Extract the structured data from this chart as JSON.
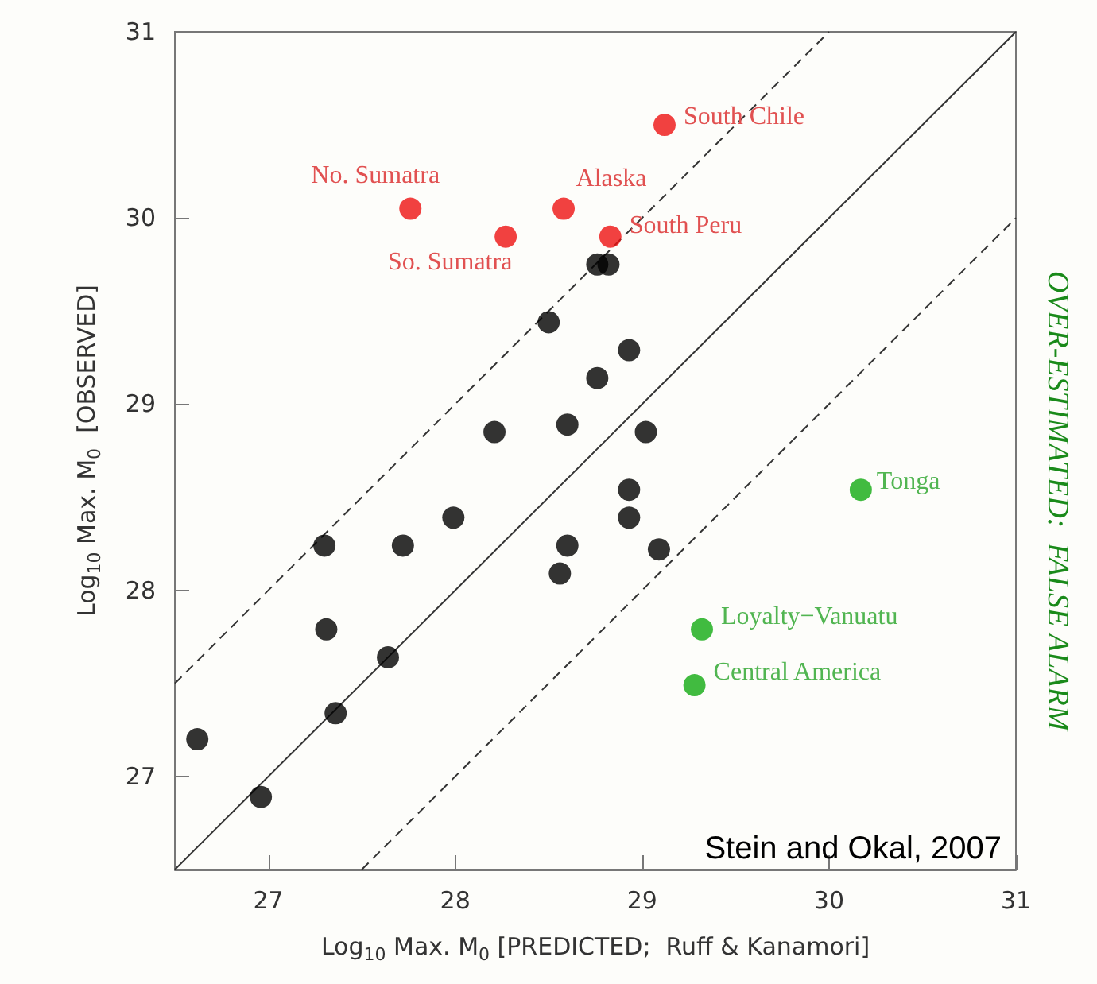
{
  "chart_data": {
    "type": "scatter",
    "xlabel": "Log$_{10}$ Max. M$_{0}$ [PREDICTED;  Ruff & Kanamori]",
    "ylabel": "Log$_{10}$ Max. M$_{0}$  [OBSERVED]",
    "xlim": [
      26.5,
      31
    ],
    "ylim": [
      26.5,
      31
    ],
    "xticks": [
      27,
      28,
      29,
      30,
      31
    ],
    "yticks": [
      27,
      28,
      29,
      30,
      31
    ],
    "marker": "circle",
    "series": [
      {
        "type": "scatter",
        "color": "#ee1111",
        "x": [
          29.12,
          27.76,
          28.27,
          28.58,
          28.83
        ],
        "values": [
          30.5,
          30.05,
          29.9,
          30.05,
          29.9
        ]
      },
      {
        "type": "scatter",
        "color": "#000000",
        "x": [
          28.76,
          28.82,
          28.5,
          28.93,
          28.76,
          28.21,
          28.6,
          29.02,
          28.93,
          28.93,
          27.3,
          27.72,
          27.99,
          28.6,
          28.56,
          29.09,
          27.31,
          27.64,
          27.36,
          26.62,
          26.96
        ],
        "values": [
          29.75,
          29.75,
          29.44,
          29.29,
          29.14,
          28.85,
          28.89,
          28.85,
          28.54,
          28.39,
          28.24,
          28.24,
          28.39,
          28.24,
          28.09,
          28.22,
          27.79,
          27.64,
          27.34,
          27.2,
          26.89
        ]
      },
      {
        "type": "scatter",
        "color": "#11aa11",
        "x": [
          30.17,
          29.32,
          29.28
        ],
        "values": [
          28.54,
          27.79,
          27.49
        ]
      },
      {
        "type": "line",
        "color": "#333333",
        "line_style": "solid",
        "marker": "none",
        "x": [
          26.5,
          31
        ],
        "values": [
          26.5,
          31
        ]
      },
      {
        "type": "line",
        "color": "#333333",
        "line_style": "dashed",
        "marker": "none",
        "x": [
          26.5,
          30
        ],
        "values": [
          27.5,
          31
        ]
      },
      {
        "type": "line",
        "color": "#333333",
        "line_style": "dashed",
        "marker": "none",
        "x": [
          27.5,
          31
        ],
        "values": [
          26.5,
          30
        ]
      }
    ],
    "annotations": [
      {
        "text": "South Chile",
        "x": 29.12,
        "y": 30.5
      },
      {
        "text": "No. Sumatra",
        "x": 27.76,
        "y": 30.05
      },
      {
        "text": "So. Sumatra",
        "x": 28.27,
        "y": 29.9
      },
      {
        "text": "Alaska",
        "x": 28.58,
        "y": 30.05
      },
      {
        "text": "South Peru",
        "x": 28.83,
        "y": 29.9
      },
      {
        "text": "Tonga",
        "x": 30.17,
        "y": 28.54
      },
      {
        "text": "Loyalty−Vanuatu",
        "x": 29.32,
        "y": 27.79
      },
      {
        "text": "Central America",
        "x": 29.28,
        "y": 27.49
      },
      "OVER-ESTIMATED:  FALSE ALARM",
      "Stein and Okal, 2007"
    ]
  }
}
